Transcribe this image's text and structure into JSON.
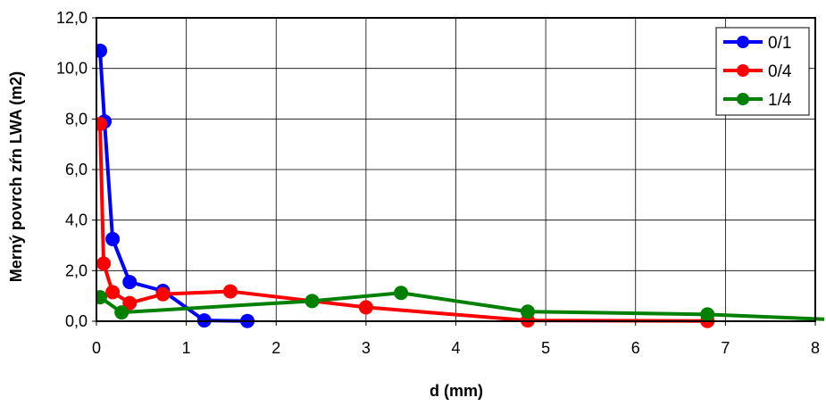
{
  "chart_data": {
    "type": "line",
    "title": "",
    "xlabel": "d (mm)",
    "ylabel": "Merný povrch zŕn LWA (m2)",
    "xlim": [
      0,
      8
    ],
    "ylim": [
      0,
      12
    ],
    "grid": true,
    "legend_position": "top-right",
    "x_ticks": [
      "0",
      "1",
      "2",
      "3",
      "4",
      "5",
      "6",
      "7",
      "8"
    ],
    "y_ticks": [
      "0,0",
      "2,0",
      "4,0",
      "6,0",
      "8,0",
      "10,0",
      "12,0"
    ],
    "series": [
      {
        "name": "0/1",
        "color": "#0000ff",
        "points": [
          [
            0.04,
            10.7
          ],
          [
            0.09,
            7.9
          ],
          [
            0.18,
            3.25
          ],
          [
            0.37,
            1.55
          ],
          [
            0.74,
            1.2
          ],
          [
            1.2,
            0.03
          ],
          [
            1.68,
            0.01
          ]
        ]
      },
      {
        "name": "0/4",
        "color": "#ff0000",
        "points": [
          [
            0.04,
            7.8
          ],
          [
            0.08,
            2.28
          ],
          [
            0.18,
            1.15
          ],
          [
            0.37,
            0.72
          ],
          [
            0.74,
            1.07
          ],
          [
            1.49,
            1.18
          ],
          [
            3.0,
            0.55
          ],
          [
            4.8,
            0.03
          ],
          [
            6.8,
            0.01
          ]
        ]
      },
      {
        "name": "1/4",
        "color": "#008000",
        "points": [
          [
            0.04,
            0.95
          ],
          [
            0.28,
            0.35
          ],
          [
            2.4,
            0.8
          ],
          [
            3.39,
            1.12
          ],
          [
            4.8,
            0.38
          ],
          [
            6.8,
            0.27
          ],
          [
            8.1,
            0.08
          ]
        ]
      }
    ]
  }
}
